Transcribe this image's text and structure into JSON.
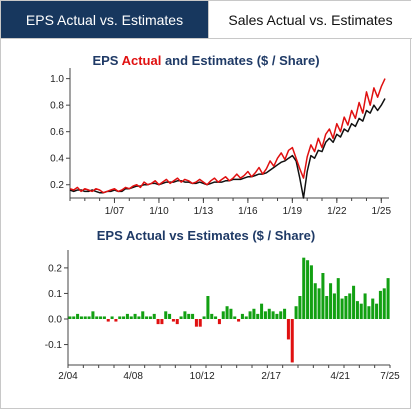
{
  "tabs": [
    {
      "label": "EPS Actual vs. Estimates",
      "active": true
    },
    {
      "label": "Sales Actual vs. Estimates",
      "active": false
    }
  ],
  "colors": {
    "tab_active_bg": "#17375e",
    "title_blue": "#1f3a66",
    "actual_red": "#e01010",
    "estimate_black": "#111111",
    "positive_green": "#12a012",
    "negative_red": "#e01010"
  },
  "chart_data": [
    {
      "type": "line",
      "title_parts": [
        "EPS ",
        "Actual",
        " and Estimates ($ / Share)"
      ],
      "xlabel": "",
      "ylabel": "",
      "x_tick_labels": [
        "1/07",
        "1/10",
        "1/13",
        "1/16",
        "1/19",
        "1/22",
        "1/25"
      ],
      "x_tick_quarter_index": [
        12,
        24,
        36,
        48,
        60,
        72,
        84
      ],
      "x_range_quarter_index": [
        0,
        85
      ],
      "ylim": [
        0.1,
        1.05
      ],
      "y_ticks": [
        0.2,
        0.4,
        0.6,
        0.8,
        1.0
      ],
      "y_tick_labels": [
        "0.2",
        "0.4",
        "0.6",
        "0.8",
        "1.0"
      ],
      "grid": false,
      "series": [
        {
          "name": "Actual",
          "color": "#e01010",
          "values": [
            0.17,
            0.16,
            0.18,
            0.15,
            0.17,
            0.16,
            0.15,
            0.17,
            0.16,
            0.14,
            0.15,
            0.16,
            0.17,
            0.15,
            0.16,
            0.18,
            0.17,
            0.19,
            0.2,
            0.18,
            0.22,
            0.2,
            0.21,
            0.23,
            0.2,
            0.22,
            0.24,
            0.21,
            0.23,
            0.25,
            0.22,
            0.24,
            0.23,
            0.21,
            0.22,
            0.24,
            0.22,
            0.2,
            0.23,
            0.25,
            0.22,
            0.24,
            0.26,
            0.23,
            0.25,
            0.28,
            0.25,
            0.27,
            0.3,
            0.26,
            0.29,
            0.33,
            0.28,
            0.32,
            0.38,
            0.34,
            0.4,
            0.44,
            0.39,
            0.46,
            0.48,
            0.4,
            0.32,
            0.25,
            0.41,
            0.5,
            0.45,
            0.55,
            0.48,
            0.58,
            0.62,
            0.55,
            0.66,
            0.6,
            0.71,
            0.65,
            0.76,
            0.7,
            0.82,
            0.74,
            0.9,
            0.8,
            0.93,
            0.86,
            0.94,
            1.0
          ]
        },
        {
          "name": "Estimates",
          "color": "#111111",
          "values": [
            0.16,
            0.15,
            0.16,
            0.16,
            0.15,
            0.15,
            0.16,
            0.15,
            0.14,
            0.14,
            0.15,
            0.15,
            0.16,
            0.15,
            0.15,
            0.17,
            0.17,
            0.18,
            0.19,
            0.19,
            0.2,
            0.2,
            0.21,
            0.21,
            0.2,
            0.21,
            0.22,
            0.22,
            0.22,
            0.23,
            0.23,
            0.22,
            0.22,
            0.21,
            0.21,
            0.22,
            0.21,
            0.2,
            0.21,
            0.22,
            0.22,
            0.22,
            0.23,
            0.23,
            0.24,
            0.24,
            0.24,
            0.25,
            0.26,
            0.26,
            0.27,
            0.28,
            0.28,
            0.29,
            0.31,
            0.33,
            0.35,
            0.37,
            0.38,
            0.4,
            0.42,
            0.38,
            0.25,
            0.1,
            0.3,
            0.42,
            0.4,
            0.46,
            0.45,
            0.52,
            0.55,
            0.52,
            0.58,
            0.56,
            0.62,
            0.6,
            0.66,
            0.64,
            0.7,
            0.68,
            0.76,
            0.74,
            0.8,
            0.76,
            0.8,
            0.85
          ]
        }
      ]
    },
    {
      "type": "bar",
      "title": "EPS Actual vs Estimates ($ / Share)",
      "xlabel": "",
      "ylabel": "",
      "x_tick_labels": [
        "2/04",
        "4/08",
        "10/12",
        "2/17",
        "4/21",
        "7/25"
      ],
      "x_tick_bar_index": [
        0,
        17,
        35,
        53,
        71,
        88
      ],
      "ylim": [
        -0.18,
        0.27
      ],
      "y_ticks": [
        -0.1,
        0.0,
        0.1,
        0.2
      ],
      "y_tick_labels": [
        "-0.1",
        "0.0",
        "0.1",
        "0.2"
      ],
      "grid": false,
      "values": [
        0.01,
        0.01,
        0.02,
        0.01,
        0.01,
        0.01,
        0.03,
        0.01,
        0.01,
        0.01,
        -0.01,
        0.01,
        -0.01,
        0.01,
        0.01,
        0.02,
        0.01,
        0.02,
        0.01,
        0.03,
        0.01,
        0.01,
        0.02,
        -0.02,
        -0.02,
        0.03,
        0.02,
        -0.01,
        -0.02,
        0.01,
        0.03,
        0.02,
        0.02,
        -0.03,
        -0.03,
        0.01,
        0.09,
        0.02,
        0.01,
        -0.02,
        0.03,
        0.05,
        0.04,
        0.01,
        -0.01,
        0.02,
        0.01,
        0.03,
        0.04,
        0.02,
        0.06,
        0.03,
        0.04,
        0.03,
        0.02,
        0.03,
        0.04,
        -0.08,
        -0.17,
        0.05,
        0.09,
        0.24,
        0.23,
        0.21,
        0.14,
        0.12,
        0.18,
        0.09,
        0.14,
        0.1,
        0.16,
        0.08,
        0.09,
        0.1,
        0.13,
        0.07,
        0.06,
        0.1,
        0.05,
        0.08,
        0.06,
        0.11,
        0.12,
        0.16
      ]
    }
  ]
}
